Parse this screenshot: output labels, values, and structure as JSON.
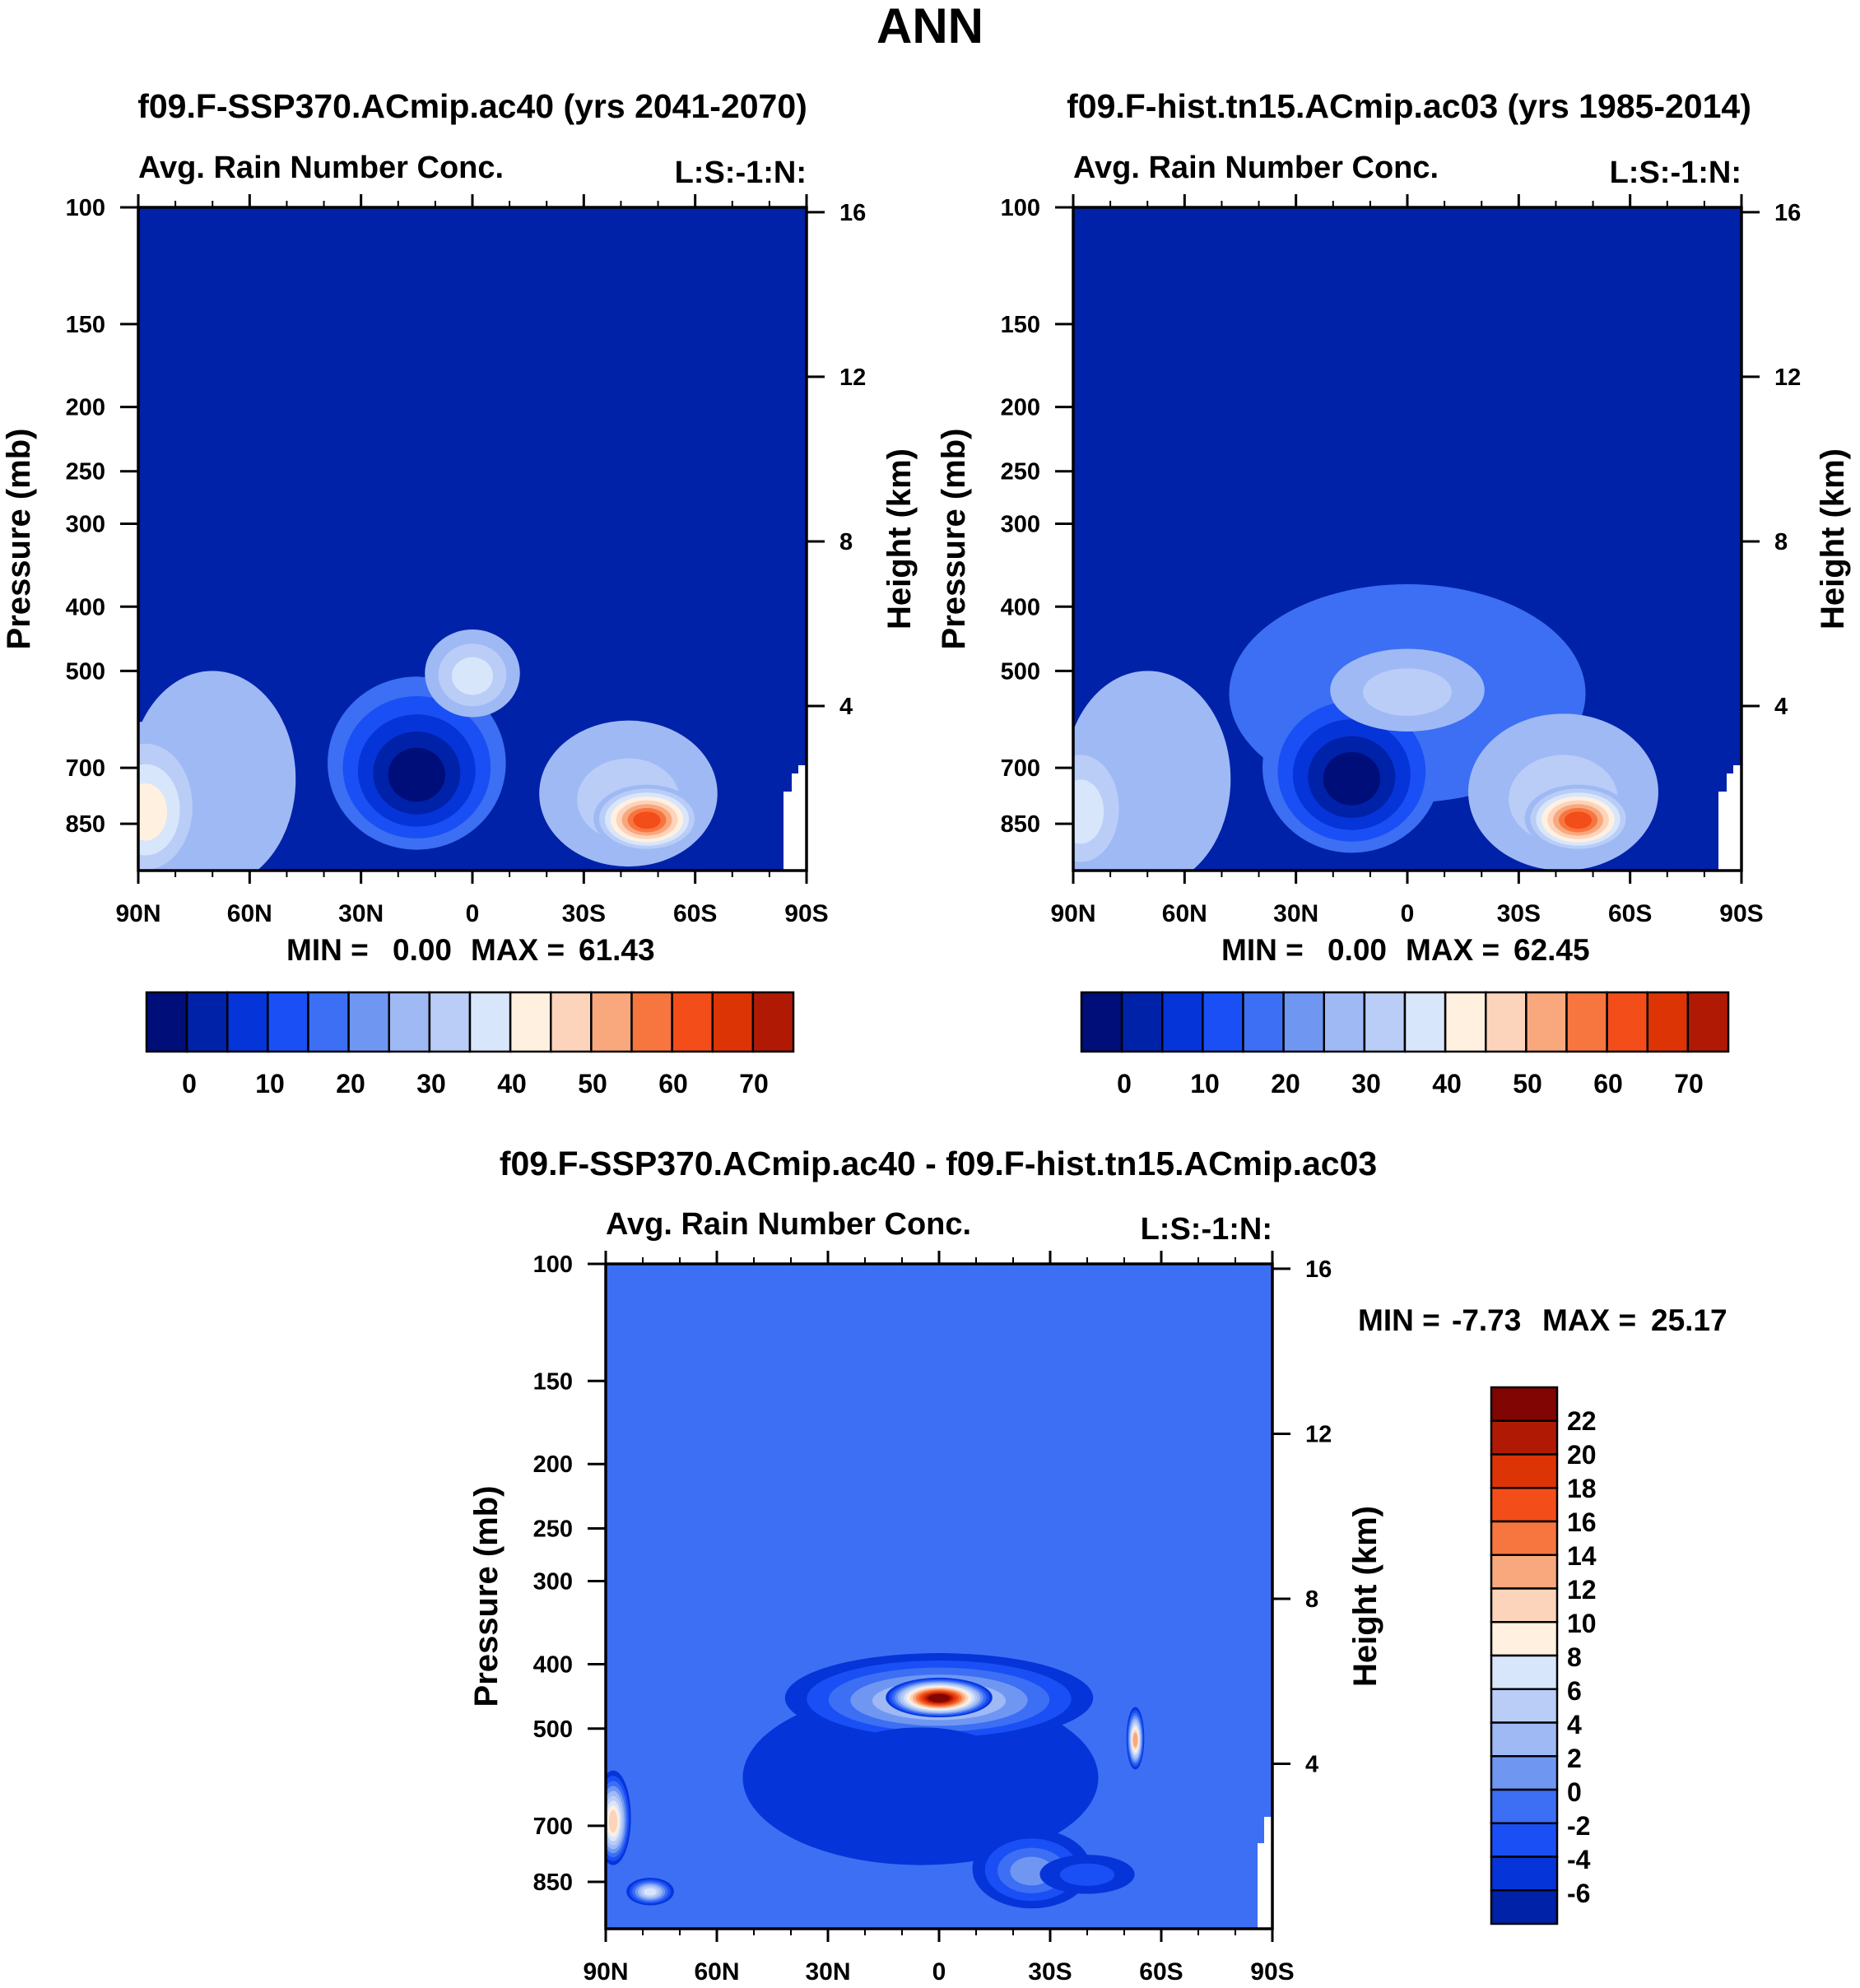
{
  "figure_title": "ANN",
  "colors": {
    "abs_levels": [
      "#000e7a",
      "#0022a8",
      "#0534d9",
      "#1a4ff5",
      "#3c6ff3",
      "#6f97f2",
      "#9fb9f5",
      "#b9cdf7",
      "#d8e6fb",
      "#fff0e0",
      "#fcd3bb",
      "#f9a87e",
      "#f7763f",
      "#f34d1a",
      "#dd3406",
      "#b01a05",
      "#810503"
    ],
    "diff_levels": [
      "#000e7a",
      "#0022a8",
      "#0534d9",
      "#1a4ff5",
      "#3c6ff3",
      "#6f97f2",
      "#9fb9f5",
      "#b9cdf7",
      "#d8e6fb",
      "#fff0e0",
      "#fcd3bb",
      "#f9a87e",
      "#f7763f",
      "#f34d1a",
      "#dd3406",
      "#b01a05",
      "#810503"
    ]
  },
  "chart_data": [
    {
      "type": "heatmap",
      "id": "panel1",
      "title": "f09.F-SSP370.ACmip.ac40 (yrs 2041-2070)",
      "subtitle_left": "Avg. Rain Number Conc.",
      "subtitle_right": "L:S:-1:N:",
      "ylabel": "Pressure (mb)",
      "y2label": "Height (km)",
      "x_ticks": [
        "90N",
        "60N",
        "30N",
        "0",
        "30S",
        "60S",
        "90S"
      ],
      "x_values": [
        90,
        60,
        30,
        0,
        -30,
        -60,
        -90
      ],
      "y_ticks": [
        100,
        150,
        200,
        250,
        300,
        400,
        500,
        700,
        850
      ],
      "y2_ticks": [
        16,
        12,
        8,
        4
      ],
      "ylim": [
        100,
        1000
      ],
      "stats": {
        "min_label": "MIN =",
        "min_value": "0.00",
        "max_label": "MAX =",
        "max_value": "61.43"
      },
      "colorbar_labels": [
        "0",
        "10",
        "20",
        "30",
        "40",
        "50",
        "60",
        "70"
      ],
      "features": [
        {
          "lat": -47,
          "p": 840,
          "value": 61,
          "sx": 9,
          "sp": 70
        },
        {
          "lat": -42,
          "p": 790,
          "value": 30,
          "sx": 15,
          "sp": 140
        },
        {
          "lat": 88,
          "p": 820,
          "value": 40,
          "sx": 10,
          "sp": 160
        },
        {
          "lat": 70,
          "p": 780,
          "value": 26,
          "sx": 14,
          "sp": 200
        },
        {
          "lat": 0,
          "p": 510,
          "value": 34,
          "sx": 8,
          "sp": 55
        },
        {
          "lat": 0,
          "p": 560,
          "value": 18,
          "sx": 28,
          "sp": 150
        },
        {
          "lat": 15,
          "p": 720,
          "value": -15,
          "sx": 15,
          "sp": 150
        }
      ]
    },
    {
      "type": "heatmap",
      "id": "panel2",
      "title": "f09.F-hist.tn15.ACmip.ac03 (yrs 1985-2014)",
      "subtitle_left": "Avg. Rain Number Conc.",
      "subtitle_right": "L:S:-1:N:",
      "ylabel": "Pressure (mb)",
      "y2label": "Height (km)",
      "x_ticks": [
        "90N",
        "60N",
        "30N",
        "0",
        "30S",
        "60S",
        "90S"
      ],
      "x_values": [
        90,
        60,
        30,
        0,
        -30,
        -60,
        -90
      ],
      "y_ticks": [
        100,
        150,
        200,
        250,
        300,
        400,
        500,
        700,
        850
      ],
      "y2_ticks": [
        16,
        12,
        8,
        4
      ],
      "ylim": [
        100,
        1000
      ],
      "stats": {
        "min_label": "MIN =",
        "min_value": "0.00",
        "max_label": "MAX =",
        "max_value": "62.45"
      },
      "colorbar_labels": [
        "0",
        "10",
        "20",
        "30",
        "40",
        "50",
        "60",
        "70"
      ],
      "features": [
        {
          "lat": -46,
          "p": 840,
          "value": 62,
          "sx": 9,
          "sp": 70
        },
        {
          "lat": -42,
          "p": 790,
          "value": 30,
          "sx": 16,
          "sp": 150
        },
        {
          "lat": 88,
          "p": 820,
          "value": 36,
          "sx": 9,
          "sp": 150
        },
        {
          "lat": 70,
          "p": 780,
          "value": 24,
          "sx": 14,
          "sp": 200
        },
        {
          "lat": 0,
          "p": 540,
          "value": 28,
          "sx": 13,
          "sp": 55
        },
        {
          "lat": 0,
          "p": 580,
          "value": 16,
          "sx": 30,
          "sp": 150
        },
        {
          "lat": 15,
          "p": 730,
          "value": -15,
          "sx": 15,
          "sp": 150
        }
      ]
    },
    {
      "type": "heatmap",
      "id": "panel3",
      "title": "f09.F-SSP370.ACmip.ac40 - f09.F-hist.tn15.ACmip.ac03",
      "subtitle_left": "Avg. Rain Number Conc.",
      "subtitle_right": "L:S:-1:N:",
      "ylabel": "Pressure (mb)",
      "y2label": "Height (km)",
      "x_ticks": [
        "90N",
        "60N",
        "30N",
        "0",
        "30S",
        "60S",
        "90S"
      ],
      "x_values": [
        90,
        60,
        30,
        0,
        -30,
        -60,
        -90
      ],
      "y_ticks": [
        100,
        150,
        200,
        250,
        300,
        400,
        500,
        700,
        850
      ],
      "y2_ticks": [
        16,
        12,
        8,
        4
      ],
      "ylim": [
        100,
        1000
      ],
      "stats": {
        "min_label": "MIN =",
        "min_value": "-7.73",
        "max_label": "MAX =",
        "max_value": "25.17"
      },
      "colorbar_labels": [
        "22",
        "20",
        "18",
        "16",
        "14",
        "12",
        "10",
        "8",
        "6",
        "4",
        "2",
        "0",
        "-2",
        "-4",
        "-6"
      ],
      "features": [
        {
          "lat": 0,
          "p": 450,
          "value": 23,
          "sx": 9,
          "sp": 22
        },
        {
          "lat": 0,
          "p": 455,
          "value": 6,
          "sx": 26,
          "sp": 50
        },
        {
          "lat": 5,
          "p": 540,
          "value": -5,
          "sx": 12,
          "sp": 30
        },
        {
          "lat": 5,
          "p": 620,
          "value": -4,
          "sx": 30,
          "sp": 130
        },
        {
          "lat": -40,
          "p": 830,
          "value": -3,
          "sx": 8,
          "sp": 40
        },
        {
          "lat": 88,
          "p": 690,
          "value": 11,
          "sx": 3,
          "sp": 80
        },
        {
          "lat": 78,
          "p": 880,
          "value": 8,
          "sx": 4,
          "sp": 30
        },
        {
          "lat": -53,
          "p": 520,
          "value": 14,
          "sx": 1.5,
          "sp": 40
        },
        {
          "lat": -25,
          "p": 820,
          "value": 2,
          "sx": 10,
          "sp": 80
        }
      ]
    }
  ]
}
